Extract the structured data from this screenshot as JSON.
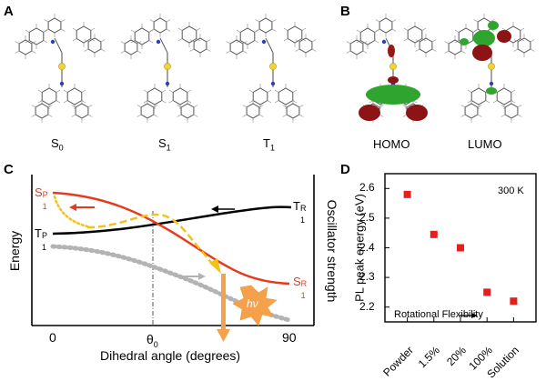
{
  "panels": {
    "a": {
      "letter": "A",
      "structures": [
        {
          "main": "S",
          "sub": "0"
        },
        {
          "main": "S",
          "sub": "1"
        },
        {
          "main": "T",
          "sub": "1"
        }
      ]
    },
    "b": {
      "letter": "B",
      "orbitals": [
        "HOMO",
        "LUMO"
      ]
    },
    "c": {
      "letter": "C",
      "y_left": "Energy",
      "y_right": "Oscillator strength",
      "x_label": "Dihedral angle (degrees)",
      "x_tick_left": "0",
      "x_tick_mid": {
        "main": "θ",
        "sub": "0"
      },
      "x_tick_right": "90",
      "state_s1p": {
        "main": "S",
        "sub": "1",
        "sup": "P"
      },
      "state_t1p": {
        "main": "T",
        "sub": "1",
        "sup": "P"
      },
      "state_t1r": {
        "main": "T",
        "sub": "1",
        "sup": "R"
      },
      "state_s1r": {
        "main": "S",
        "sub": "1",
        "sup": "R"
      },
      "hv": "hν",
      "colors": {
        "s1": "#e63a1e",
        "t1": "#000000",
        "yellow": "#f2c21a",
        "osc": "#b3b3b3",
        "emission": "#f5a04a"
      }
    },
    "d": {
      "letter": "D",
      "temperature": "300 K",
      "arrow_text": "Rotational Flexibility"
    }
  },
  "chart_data": {
    "type": "scatter",
    "categories": [
      "Powder",
      "1.5%",
      "20%",
      "100%",
      "Solution"
    ],
    "values": [
      2.58,
      2.445,
      2.4,
      2.25,
      2.22
    ],
    "ylabel": "PL peak energy (eV)",
    "ylim": [
      2.15,
      2.65
    ],
    "yticks": [
      "2.6",
      "2.5",
      "2.4",
      "2.3",
      "2.2"
    ],
    "marker_color": "#e51e1e"
  }
}
